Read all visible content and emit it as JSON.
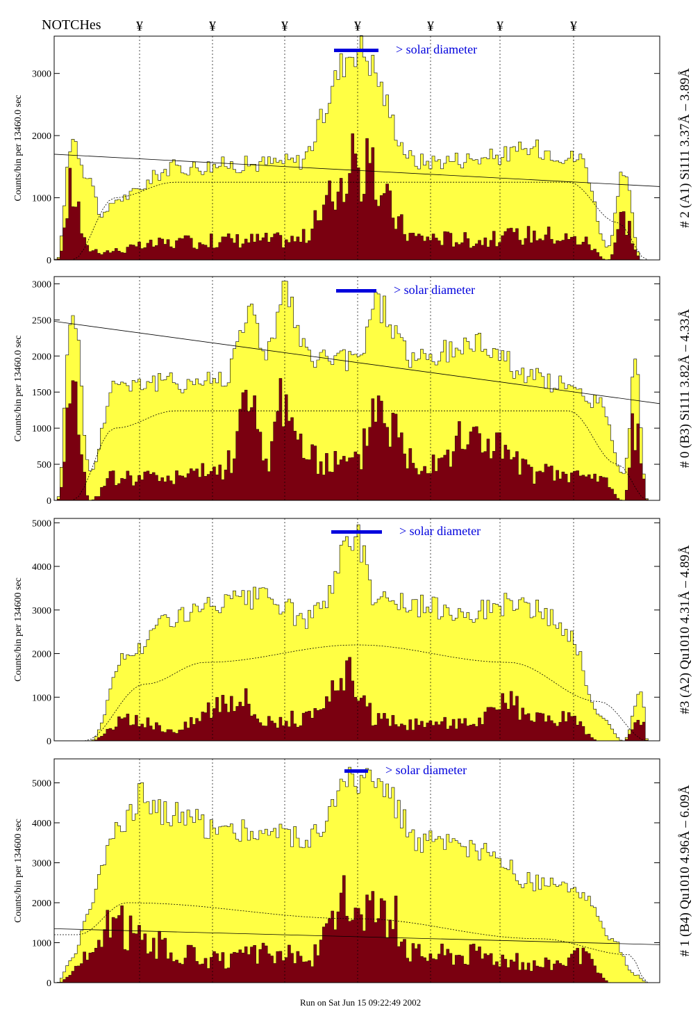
{
  "header": {
    "notches_label": "NOTCHes",
    "notch_marker": "¥"
  },
  "footer": {
    "run_text": "Run on Sat Jun 15 09:22:49 2002"
  },
  "colors": {
    "total": "#ffff44",
    "solar": "#7a0010",
    "bar": "#0000dd",
    "frame": "#000000"
  },
  "chart_data": [
    {
      "type": "area",
      "ylabel": "Counts/bin per  13460.0 sec",
      "right_title": "# 2 (A1) Si111  3.37Å – 3.89Å",
      "diameter_label": "> solar diameter",
      "ylim": [
        0,
        3600
      ],
      "yticks": [
        0,
        1000,
        2000,
        3000
      ],
      "peaks": [
        {
          "x": 0.005,
          "y": 10
        },
        {
          "x": 0.03,
          "y": 2000
        },
        {
          "x": 0.055,
          "y": 1400
        },
        {
          "x": 0.08,
          "y": 700
        },
        {
          "x": 0.105,
          "y": 1000
        },
        {
          "x": 0.2,
          "y": 1500
        },
        {
          "x": 0.3,
          "y": 1550
        },
        {
          "x": 0.4,
          "y": 1600
        },
        {
          "x": 0.5,
          "y": 3450
        },
        {
          "x": 0.6,
          "y": 1600
        },
        {
          "x": 0.7,
          "y": 1650
        },
        {
          "x": 0.8,
          "y": 1800
        },
        {
          "x": 0.87,
          "y": 1650
        },
        {
          "x": 0.915,
          "y": 200
        },
        {
          "x": 0.94,
          "y": 1400
        },
        {
          "x": 0.97,
          "y": 0
        }
      ],
      "solar_peaks": [
        {
          "x": 0.005,
          "y": 0
        },
        {
          "x": 0.03,
          "y": 1250
        },
        {
          "x": 0.055,
          "y": 200
        },
        {
          "x": 0.08,
          "y": 150
        },
        {
          "x": 0.2,
          "y": 300
        },
        {
          "x": 0.3,
          "y": 350
        },
        {
          "x": 0.4,
          "y": 350
        },
        {
          "x": 0.5,
          "y": 1600
        },
        {
          "x": 0.6,
          "y": 400
        },
        {
          "x": 0.7,
          "y": 350
        },
        {
          "x": 0.8,
          "y": 450
        },
        {
          "x": 0.87,
          "y": 350
        },
        {
          "x": 0.915,
          "y": 0
        },
        {
          "x": 0.94,
          "y": 750
        },
        {
          "x": 0.97,
          "y": 0
        }
      ],
      "trend": [
        1700,
        1180
      ],
      "dotted": [
        {
          "x": 0.03,
          "y": 0
        },
        {
          "x": 0.1,
          "y": 1000
        },
        {
          "x": 0.2,
          "y": 1250
        },
        {
          "x": 0.85,
          "y": 1250
        },
        {
          "x": 0.93,
          "y": 600
        },
        {
          "x": 0.98,
          "y": 0
        }
      ]
    },
    {
      "type": "area",
      "ylabel": "Counts/bin per  13460.0 sec",
      "right_title": "# 0 (B3) Si111  3.82Å – 4.33Å",
      "diameter_label": "> solar diameter",
      "ylim": [
        0,
        3100
      ],
      "yticks": [
        0,
        500,
        1000,
        1500,
        2000,
        2500,
        3000
      ],
      "peaks": [
        {
          "x": 0.005,
          "y": 0
        },
        {
          "x": 0.03,
          "y": 2750
        },
        {
          "x": 0.06,
          "y": 400
        },
        {
          "x": 0.1,
          "y": 1650
        },
        {
          "x": 0.2,
          "y": 1650
        },
        {
          "x": 0.28,
          "y": 1700
        },
        {
          "x": 0.32,
          "y": 2650
        },
        {
          "x": 0.35,
          "y": 2100
        },
        {
          "x": 0.38,
          "y": 2900
        },
        {
          "x": 0.42,
          "y": 2000
        },
        {
          "x": 0.5,
          "y": 1950
        },
        {
          "x": 0.53,
          "y": 2750
        },
        {
          "x": 0.6,
          "y": 1950
        },
        {
          "x": 0.7,
          "y": 2200
        },
        {
          "x": 0.8,
          "y": 1700
        },
        {
          "x": 0.9,
          "y": 1400
        },
        {
          "x": 0.94,
          "y": 350
        },
        {
          "x": 0.96,
          "y": 1850
        },
        {
          "x": 0.98,
          "y": 0
        }
      ],
      "solar_peaks": [
        {
          "x": 0.005,
          "y": 0
        },
        {
          "x": 0.03,
          "y": 1650
        },
        {
          "x": 0.06,
          "y": 0
        },
        {
          "x": 0.1,
          "y": 350
        },
        {
          "x": 0.2,
          "y": 350
        },
        {
          "x": 0.28,
          "y": 450
        },
        {
          "x": 0.32,
          "y": 1450
        },
        {
          "x": 0.35,
          "y": 600
        },
        {
          "x": 0.38,
          "y": 1650
        },
        {
          "x": 0.42,
          "y": 600
        },
        {
          "x": 0.5,
          "y": 550
        },
        {
          "x": 0.53,
          "y": 1500
        },
        {
          "x": 0.6,
          "y": 600
        },
        {
          "x": 0.7,
          "y": 950
        },
        {
          "x": 0.8,
          "y": 400
        },
        {
          "x": 0.9,
          "y": 350
        },
        {
          "x": 0.94,
          "y": 0
        },
        {
          "x": 0.96,
          "y": 1150
        },
        {
          "x": 0.98,
          "y": 0
        }
      ],
      "trend": [
        2480,
        1340
      ],
      "dotted": [
        {
          "x": 0.03,
          "y": 0
        },
        {
          "x": 0.1,
          "y": 1000
        },
        {
          "x": 0.2,
          "y": 1240
        },
        {
          "x": 0.85,
          "y": 1240
        },
        {
          "x": 0.93,
          "y": 500
        },
        {
          "x": 0.98,
          "y": 0
        }
      ]
    },
    {
      "type": "area",
      "ylabel": "Counts/bin per  134600 sec",
      "right_title": "#3 (A2) Qu1010  4.31Å – 4.89Å",
      "diameter_label": "> solar diameter",
      "ylim": [
        0,
        5100
      ],
      "yticks": [
        0,
        1000,
        2000,
        3000,
        4000,
        5000
      ],
      "peaks": [
        {
          "x": 0.005,
          "y": 0
        },
        {
          "x": 0.06,
          "y": 0
        },
        {
          "x": 0.12,
          "y": 2000
        },
        {
          "x": 0.2,
          "y": 2900
        },
        {
          "x": 0.3,
          "y": 3200
        },
        {
          "x": 0.35,
          "y": 3300
        },
        {
          "x": 0.42,
          "y": 2800
        },
        {
          "x": 0.5,
          "y": 4700
        },
        {
          "x": 0.53,
          "y": 3400
        },
        {
          "x": 0.6,
          "y": 3100
        },
        {
          "x": 0.7,
          "y": 3000
        },
        {
          "x": 0.75,
          "y": 3200
        },
        {
          "x": 0.8,
          "y": 3000
        },
        {
          "x": 0.85,
          "y": 2500
        },
        {
          "x": 0.9,
          "y": 600
        },
        {
          "x": 0.94,
          "y": 0
        },
        {
          "x": 0.97,
          "y": 1100
        },
        {
          "x": 0.98,
          "y": 0
        }
      ],
      "solar_peaks": [
        {
          "x": 0.005,
          "y": 0
        },
        {
          "x": 0.06,
          "y": 0
        },
        {
          "x": 0.12,
          "y": 500
        },
        {
          "x": 0.2,
          "y": 300
        },
        {
          "x": 0.3,
          "y": 1200
        },
        {
          "x": 0.35,
          "y": 500
        },
        {
          "x": 0.42,
          "y": 550
        },
        {
          "x": 0.5,
          "y": 1600
        },
        {
          "x": 0.53,
          "y": 500
        },
        {
          "x": 0.6,
          "y": 400
        },
        {
          "x": 0.7,
          "y": 500
        },
        {
          "x": 0.75,
          "y": 900
        },
        {
          "x": 0.8,
          "y": 500
        },
        {
          "x": 0.85,
          "y": 550
        },
        {
          "x": 0.9,
          "y": 0
        },
        {
          "x": 0.94,
          "y": 0
        },
        {
          "x": 0.97,
          "y": 500
        },
        {
          "x": 0.98,
          "y": 0
        }
      ],
      "trend": null,
      "dotted": [
        {
          "x": 0.05,
          "y": 0
        },
        {
          "x": 0.15,
          "y": 1300
        },
        {
          "x": 0.25,
          "y": 1800
        },
        {
          "x": 0.5,
          "y": 2200
        },
        {
          "x": 0.75,
          "y": 1800
        },
        {
          "x": 0.9,
          "y": 900
        },
        {
          "x": 0.98,
          "y": 0
        }
      ]
    },
    {
      "type": "area",
      "ylabel": "Counts/bin per  134600 sec",
      "right_title": "# 1 (B4) Qu1010 4.96Å – 6.09Å",
      "diameter_label": "> solar diameter",
      "ylim": [
        0,
        5600
      ],
      "yticks": [
        0,
        1000,
        2000,
        3000,
        4000,
        5000
      ],
      "peaks": [
        {
          "x": 0.005,
          "y": 0
        },
        {
          "x": 0.03,
          "y": 600
        },
        {
          "x": 0.06,
          "y": 2000
        },
        {
          "x": 0.1,
          "y": 4000
        },
        {
          "x": 0.15,
          "y": 4700
        },
        {
          "x": 0.2,
          "y": 4200
        },
        {
          "x": 0.28,
          "y": 3900
        },
        {
          "x": 0.35,
          "y": 3800
        },
        {
          "x": 0.42,
          "y": 3700
        },
        {
          "x": 0.5,
          "y": 5150
        },
        {
          "x": 0.55,
          "y": 4800
        },
        {
          "x": 0.6,
          "y": 3600
        },
        {
          "x": 0.7,
          "y": 3300
        },
        {
          "x": 0.8,
          "y": 2500
        },
        {
          "x": 0.87,
          "y": 2300
        },
        {
          "x": 0.92,
          "y": 1100
        },
        {
          "x": 0.96,
          "y": 200
        },
        {
          "x": 0.98,
          "y": 0
        }
      ],
      "solar_peaks": [
        {
          "x": 0.005,
          "y": 0
        },
        {
          "x": 0.06,
          "y": 700
        },
        {
          "x": 0.1,
          "y": 1600
        },
        {
          "x": 0.15,
          "y": 1200
        },
        {
          "x": 0.2,
          "y": 800
        },
        {
          "x": 0.28,
          "y": 600
        },
        {
          "x": 0.35,
          "y": 800
        },
        {
          "x": 0.42,
          "y": 700
        },
        {
          "x": 0.5,
          "y": 2400
        },
        {
          "x": 0.55,
          "y": 1900
        },
        {
          "x": 0.6,
          "y": 800
        },
        {
          "x": 0.7,
          "y": 800
        },
        {
          "x": 0.8,
          "y": 500
        },
        {
          "x": 0.87,
          "y": 700
        },
        {
          "x": 0.92,
          "y": 0
        },
        {
          "x": 0.98,
          "y": 0
        }
      ],
      "trend": [
        1350,
        950
      ],
      "dotted": [
        {
          "x": 0.04,
          "y": 1200
        },
        {
          "x": 0.12,
          "y": 2000
        },
        {
          "x": 0.5,
          "y": 1600
        },
        {
          "x": 0.8,
          "y": 1100
        },
        {
          "x": 0.95,
          "y": 700
        },
        {
          "x": 0.98,
          "y": 0
        }
      ]
    }
  ]
}
